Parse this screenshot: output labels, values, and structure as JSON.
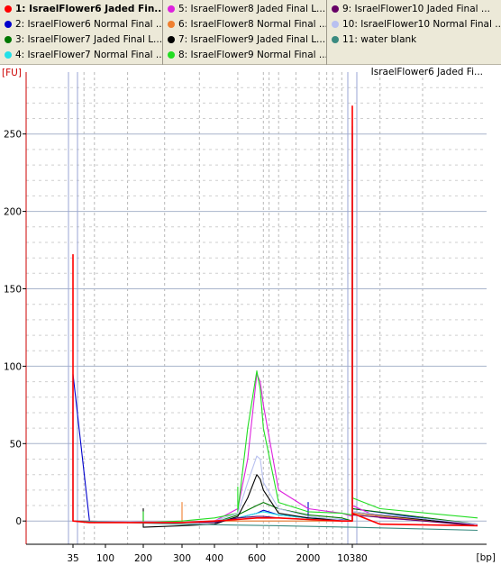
{
  "legend": {
    "items": [
      {
        "label": "1: IsraelFlower6 Jaded Fin...",
        "color": "#ff0000",
        "selected": true
      },
      {
        "label": "2: IsraelFlower6 Normal Final ...",
        "color": "#0000cc"
      },
      {
        "label": "3: IsraelFlower7 Jaded Final L...",
        "color": "#007700"
      },
      {
        "label": "4: IsraelFlower7 Normal Final ...",
        "color": "#22e0e8"
      },
      {
        "label": "5: IsraelFlower8 Jaded Final L...",
        "color": "#dd22dd"
      },
      {
        "label": "6: IsraelFlower8 Normal Final ...",
        "color": "#f08030"
      },
      {
        "label": "7: IsraelFlower9 Jaded Final L...",
        "color": "#000000"
      },
      {
        "label": "8: IsraelFlower9 Normal Final ...",
        "color": "#22dd22"
      },
      {
        "label": "9: IsraelFlower10 Jaded Final ...",
        "color": "#660066"
      },
      {
        "label": "10: IsraelFlower10 Normal Final ...",
        "color": "#b8c0f0"
      },
      {
        "label": "11: water blank",
        "color": "#3a8a80"
      }
    ]
  },
  "chart_data": {
    "type": "line",
    "title": "IsraelFlower6 Jaded Fi...",
    "ylabel": "[FU]",
    "xlabel": "[bp]",
    "ylim": [
      -15,
      290
    ],
    "yticks": [
      0,
      50,
      100,
      150,
      200,
      250
    ],
    "xticks": [
      "35",
      "100",
      "200",
      "300",
      "400",
      "600",
      "2000",
      "10380"
    ],
    "grid": true,
    "markers": [
      "35",
      "10380"
    ],
    "series": [
      {
        "name": "1: IsraelFlower6 Jaded Fin...",
        "color": "#ff0000",
        "x": [
          "35",
          "35",
          "35",
          "60",
          "200",
          "300",
          "400",
          "500",
          "600",
          "1000",
          "2000",
          "7000",
          "10380",
          "10380",
          "10380",
          "12000",
          "20000"
        ],
        "y": [
          0,
          172,
          0,
          -1,
          -1,
          -1,
          0,
          1,
          2,
          2,
          1,
          0,
          0,
          268,
          5,
          -2,
          -3
        ]
      },
      {
        "name": "2: IsraelFlower6 Normal Final ...",
        "color": "#0000cc",
        "x": [
          "35",
          "35",
          "60",
          "300",
          "400",
          "500",
          "600",
          "700",
          "1000",
          "2000",
          "2000",
          "2000",
          "7000",
          "10380",
          "10380",
          "10380",
          "20000"
        ],
        "y": [
          0,
          95,
          -1,
          -1,
          -1,
          2,
          5,
          7,
          4,
          2,
          12,
          2,
          1,
          0,
          255,
          8,
          -3
        ]
      },
      {
        "name": "3: IsraelFlower7 Jaded Final L...",
        "color": "#007700",
        "x": [
          "35",
          "60",
          "300",
          "400",
          "500",
          "600",
          "700",
          "1000",
          "2000",
          "7000",
          "10380",
          "10380",
          "10380",
          "20000"
        ],
        "y": [
          0,
          -1,
          -1,
          -1,
          4,
          10,
          12,
          8,
          4,
          2,
          0,
          250,
          8,
          -2
        ]
      },
      {
        "name": "4: IsraelFlower7 Normal Final ...",
        "color": "#22e0e8",
        "x": [
          "35",
          "35",
          "35",
          "60",
          "300",
          "400",
          "500",
          "600",
          "700",
          "1000",
          "2000",
          "10380",
          "10380",
          "10380",
          "20000"
        ],
        "y": [
          0,
          82,
          0,
          -1,
          -1,
          0,
          2,
          5,
          6,
          4,
          2,
          0,
          230,
          5,
          -3
        ]
      },
      {
        "name": "5: IsraelFlower8 Jaded Final L...",
        "color": "#dd22dd",
        "x": [
          "35",
          "60",
          "300",
          "400",
          "500",
          "550",
          "600",
          "650",
          "700",
          "1000",
          "2000",
          "7000",
          "10380",
          "10380",
          "10380",
          "12000",
          "20000"
        ],
        "y": [
          0,
          -1,
          -1,
          0,
          8,
          40,
          95,
          90,
          75,
          20,
          8,
          5,
          3,
          250,
          10,
          2,
          -2
        ]
      },
      {
        "name": "6: IsraelFlower8 Normal Final ...",
        "color": "#f08030",
        "x": [
          "35",
          "300",
          "300",
          "300",
          "400",
          "500",
          "600",
          "1000",
          "10380",
          "10380",
          "10380",
          "20000"
        ],
        "y": [
          0,
          -1,
          12,
          -1,
          0,
          0,
          0,
          0,
          0,
          240,
          5,
          -3
        ]
      },
      {
        "name": "7: IsraelFlower9 Jaded Final L...",
        "color": "#000000",
        "x": [
          "35",
          "200",
          "200",
          "200",
          "300",
          "400",
          "500",
          "550",
          "600",
          "650",
          "700",
          "1000",
          "2000",
          "10380",
          "10380",
          "10380",
          "20000"
        ],
        "y": [
          0,
          -1,
          8,
          -4,
          -3,
          -2,
          3,
          15,
          30,
          27,
          20,
          5,
          2,
          0,
          260,
          6,
          -3
        ]
      },
      {
        "name": "8: IsraelFlower9 Normal Final ...",
        "color": "#22dd22",
        "x": [
          "35",
          "200",
          "200",
          "200",
          "300",
          "400",
          "500",
          "500",
          "500",
          "550",
          "600",
          "650",
          "700",
          "1000",
          "2000",
          "7000",
          "10380",
          "10380",
          "10380",
          "12000",
          "20000"
        ],
        "y": [
          0,
          -1,
          6,
          -1,
          0,
          2,
          5,
          22,
          6,
          60,
          97,
          85,
          60,
          12,
          6,
          5,
          4,
          200,
          15,
          8,
          2
        ]
      },
      {
        "name": "9: IsraelFlower10 Jaded Final ...",
        "color": "#660066",
        "x": [
          "35",
          "300",
          "400",
          "500",
          "600",
          "700",
          "1000",
          "2000",
          "10380",
          "10380",
          "10380",
          "20000"
        ],
        "y": [
          0,
          -1,
          -1,
          2,
          3,
          3,
          2,
          1,
          0,
          240,
          4,
          -3
        ]
      },
      {
        "name": "10: IsraelFlower10 Normal Final ...",
        "color": "#b8c0f0",
        "x": [
          "35",
          "300",
          "400",
          "500",
          "550",
          "600",
          "650",
          "700",
          "1000",
          "2000",
          "10380",
          "10380",
          "10380",
          "20000"
        ],
        "y": [
          0,
          -1,
          0,
          5,
          25,
          42,
          40,
          25,
          8,
          3,
          0,
          245,
          6,
          -2
        ]
      },
      {
        "name": "11: water blank",
        "color": "#3a8a80",
        "x": [
          "35",
          "300",
          "1000",
          "10380",
          "20000"
        ],
        "y": [
          0,
          -2,
          -3,
          -4,
          -6
        ]
      }
    ]
  }
}
